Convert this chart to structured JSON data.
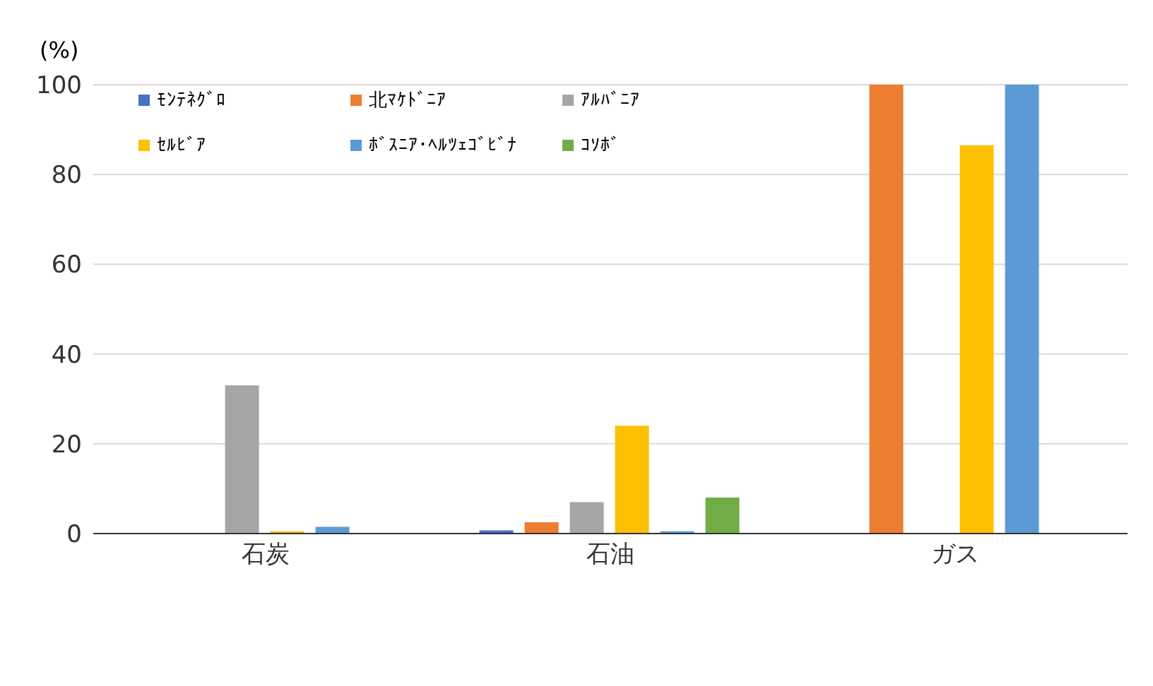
{
  "chart_data": {
    "type": "bar",
    "ylabel": "(%)",
    "categories": [
      "石炭",
      "石油",
      "ガス"
    ],
    "series": [
      {
        "name": "ﾓﾝﾃﾈｸﾞﾛ",
        "color": "#4472c4",
        "values": [
          0,
          0.7,
          0
        ]
      },
      {
        "name": "北ﾏｹﾄﾞﾆｱ",
        "color": "#ed7d31",
        "values": [
          0,
          2.5,
          100
        ]
      },
      {
        "name": "ｱﾙﾊﾞﾆｱ",
        "color": "#a5a5a5",
        "values": [
          33,
          7,
          0
        ]
      },
      {
        "name": "ｾﾙﾋﾞｱ",
        "color": "#ffc000",
        "values": [
          0.5,
          24,
          86.5
        ]
      },
      {
        "name": "ﾎﾞｽﾆｱ･ﾍﾙﾂｪｺﾞﾋﾞﾅ",
        "color": "#5b9bd5",
        "values": [
          1.5,
          0.5,
          100
        ]
      },
      {
        "name": "ｺｿﾎﾞ",
        "color": "#70ad47",
        "values": [
          0,
          8,
          0
        ]
      }
    ],
    "ylim": [
      0,
      100
    ],
    "yticks": [
      0,
      20,
      40,
      60,
      80,
      100
    ],
    "grid": "y",
    "legend": "top left"
  }
}
